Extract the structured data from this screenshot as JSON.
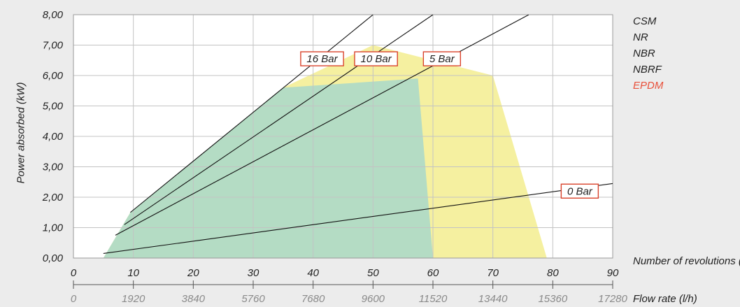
{
  "chart_data": {
    "type": "line",
    "ylabel": "Power absorbed (kW)",
    "xlabel_primary": "Number of revolutions (rpm)",
    "xlabel_secondary": "Flow rate (l/h)",
    "xlim": [
      0,
      90
    ],
    "ylim": [
      0,
      8
    ],
    "grid": true,
    "y_ticks": [
      "0,00",
      "1,00",
      "2,00",
      "3,00",
      "4,00",
      "5,00",
      "6,00",
      "7,00",
      "8,00"
    ],
    "x_ticks_rpm": [
      "0",
      "10",
      "20",
      "30",
      "40",
      "50",
      "60",
      "70",
      "80",
      "90"
    ],
    "x_ticks_flow": [
      "0",
      "1920",
      "3840",
      "5760",
      "7680",
      "9600",
      "11520",
      "13440",
      "15360",
      "17280"
    ],
    "legend": [
      {
        "name": "CSM",
        "color": "#1f1f1f"
      },
      {
        "name": "NR",
        "color": "#1f1f1f"
      },
      {
        "name": "NBR",
        "color": "#1f1f1f"
      },
      {
        "name": "NBRF",
        "color": "#1f1f1f"
      },
      {
        "name": "EPDM",
        "color": "#e8503a"
      }
    ],
    "areas": [
      {
        "color": "#f5f0a0",
        "points": [
          [
            5,
            0
          ],
          [
            9.5,
            1.5
          ],
          [
            35,
            5.6
          ],
          [
            50,
            7.0
          ],
          [
            70,
            6.0
          ],
          [
            79,
            0
          ]
        ]
      },
      {
        "color": "#b4dcc4",
        "points": [
          [
            5,
            0
          ],
          [
            9.5,
            1.5
          ],
          [
            35,
            5.6
          ],
          [
            57.5,
            5.9
          ],
          [
            60,
            0
          ]
        ]
      }
    ],
    "series": [
      {
        "name": "16 Bar",
        "points": [
          [
            9.5,
            1.5
          ],
          [
            50,
            8.0
          ]
        ]
      },
      {
        "name": "10 Bar",
        "points": [
          [
            8.5,
            1.1
          ],
          [
            60,
            8.0
          ]
        ]
      },
      {
        "name": "5 Bar",
        "points": [
          [
            7,
            0.75
          ],
          [
            76,
            8.0
          ]
        ]
      },
      {
        "name": "0 Bar",
        "points": [
          [
            5,
            0.15
          ],
          [
            90,
            2.45
          ]
        ]
      }
    ],
    "series_labels": [
      {
        "text": "16 Bar",
        "x": 41.5,
        "y": 6.55
      },
      {
        "text": "10 Bar",
        "x": 50.5,
        "y": 6.55
      },
      {
        "text": "5 Bar",
        "x": 61.5,
        "y": 6.55
      },
      {
        "text": "0 Bar",
        "x": 84.5,
        "y": 2.2
      }
    ],
    "colors": {
      "label_border": "#d9432c",
      "grid": "#c3c3c3",
      "axis": "#555555",
      "plot_bg": "#ffffff"
    }
  }
}
